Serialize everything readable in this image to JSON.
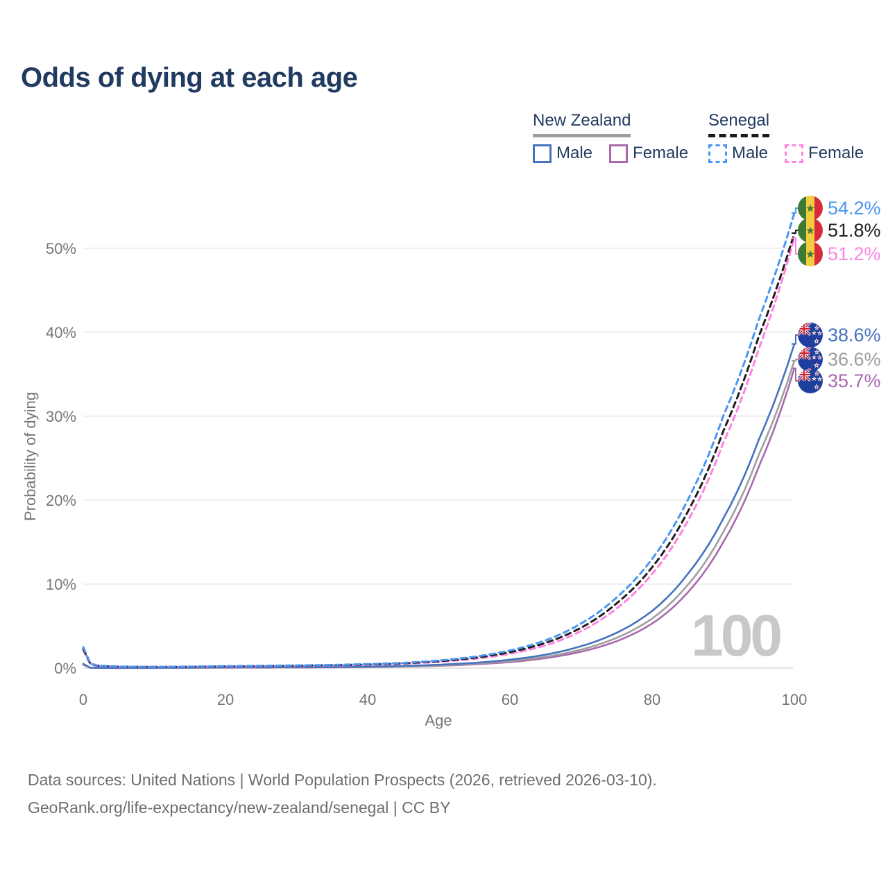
{
  "title": "Odds of dying at each age",
  "legend": {
    "groups": [
      {
        "label": "New Zealand",
        "items": [
          {
            "label": "Male"
          },
          {
            "label": "Female"
          }
        ]
      },
      {
        "label": "Senegal",
        "items": [
          {
            "label": "Male"
          },
          {
            "label": "Female"
          }
        ]
      }
    ]
  },
  "watermark": "100",
  "footer": {
    "line1": "Data sources: United Nations | World Population Prospects (2026, retrieved 2026-03-10).",
    "line2": "GeoRank.org/life-expectancy/new-zealand/senegal | CC BY"
  },
  "colors": {
    "title_text": "#203a60",
    "axis_text": "#757575",
    "gridline": "#ebebeb",
    "baseline": "#d8d8d8",
    "watermark": "#c8c8c8",
    "footer_text": "#6e6e6e"
  },
  "chart_data": {
    "type": "line",
    "title": "Odds of dying at each age",
    "xlabel": "Age",
    "ylabel": "Probability of dying",
    "xlim": [
      0,
      100
    ],
    "ylim": [
      0,
      56
    ],
    "grid": "horizontal",
    "legend_position": "top-right",
    "xticks": [
      0,
      20,
      40,
      60,
      80,
      100
    ],
    "xtick_labels": [
      "0",
      "20",
      "40",
      "60",
      "80",
      "100"
    ],
    "ytick_values": [
      0,
      10,
      20,
      30,
      40,
      50
    ],
    "ytick_labels": [
      "0%",
      "10%",
      "20%",
      "30%",
      "40%",
      "50%"
    ],
    "ages": [
      0,
      1,
      2,
      5,
      10,
      15,
      20,
      25,
      30,
      35,
      40,
      45,
      50,
      55,
      60,
      65,
      70,
      75,
      80,
      85,
      90,
      95,
      100
    ],
    "series": [
      {
        "name": "Senegal Male",
        "country": "Senegal",
        "sex": "male",
        "style": "dashed",
        "color": "#4a96f2",
        "flag_icon": "senegal-flag-icon",
        "end_label": "54.2%",
        "values": [
          2.5,
          0.55,
          0.3,
          0.18,
          0.15,
          0.18,
          0.23,
          0.27,
          0.32,
          0.38,
          0.47,
          0.62,
          0.9,
          1.35,
          2.1,
          3.3,
          5.3,
          8.4,
          13.0,
          20.0,
          30.0,
          41.5,
          54.2
        ]
      },
      {
        "name": "Senegal All",
        "country": "Senegal",
        "sex": "all",
        "style": "dashed",
        "color": "#1f1f1f",
        "flag_icon": "senegal-flag-icon",
        "end_label": "51.8%",
        "values": [
          2.3,
          0.5,
          0.28,
          0.17,
          0.14,
          0.16,
          0.2,
          0.24,
          0.29,
          0.35,
          0.43,
          0.57,
          0.82,
          1.22,
          1.9,
          3.0,
          4.8,
          7.7,
          12.0,
          18.6,
          28.2,
          39.5,
          51.8
        ]
      },
      {
        "name": "Senegal Female",
        "country": "Senegal",
        "sex": "female",
        "style": "dashed",
        "color": "#ff82e2",
        "flag_icon": "senegal-flag-icon",
        "end_label": "51.2%",
        "values": [
          2.1,
          0.45,
          0.25,
          0.15,
          0.13,
          0.14,
          0.17,
          0.2,
          0.25,
          0.31,
          0.39,
          0.52,
          0.74,
          1.1,
          1.7,
          2.7,
          4.4,
          7.1,
          11.2,
          17.5,
          26.8,
          38.0,
          51.2
        ]
      },
      {
        "name": "New Zealand Male",
        "country": "New Zealand",
        "sex": "male",
        "style": "solid",
        "color": "#4472bd",
        "flag_icon": "new-zealand-flag-icon",
        "end_label": "38.6%",
        "values": [
          0.5,
          0.04,
          0.03,
          0.02,
          0.03,
          0.06,
          0.09,
          0.1,
          0.11,
          0.13,
          0.17,
          0.25,
          0.4,
          0.62,
          1.0,
          1.6,
          2.6,
          4.2,
          6.8,
          11.2,
          17.8,
          27.2,
          38.6
        ]
      },
      {
        "name": "New Zealand All",
        "country": "New Zealand",
        "sex": "all",
        "style": "solid",
        "color": "#9e9e9e",
        "flag_icon": "new-zealand-flag-icon",
        "end_label": "36.6%",
        "values": [
          0.45,
          0.035,
          0.025,
          0.02,
          0.025,
          0.05,
          0.07,
          0.08,
          0.09,
          0.11,
          0.14,
          0.21,
          0.33,
          0.52,
          0.84,
          1.35,
          2.2,
          3.6,
          5.9,
          9.9,
          16.2,
          25.4,
          36.6
        ]
      },
      {
        "name": "New Zealand Female",
        "country": "New Zealand",
        "sex": "female",
        "style": "solid",
        "color": "#a869ad",
        "flag_icon": "new-zealand-flag-icon",
        "end_label": "35.7%",
        "values": [
          0.4,
          0.03,
          0.02,
          0.018,
          0.02,
          0.035,
          0.05,
          0.06,
          0.07,
          0.09,
          0.12,
          0.18,
          0.28,
          0.44,
          0.72,
          1.18,
          1.95,
          3.2,
          5.3,
          9.0,
          15.0,
          24.0,
          35.7
        ]
      }
    ]
  }
}
